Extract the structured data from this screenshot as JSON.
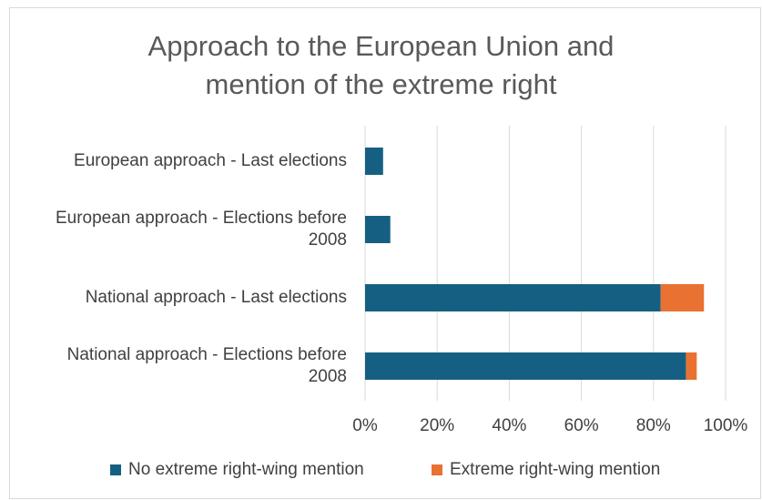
{
  "chart_data": {
    "type": "bar",
    "orientation": "horizontal",
    "stacked": true,
    "title": "Approach to the European Union and mention of the extreme right",
    "title_lines": [
      "Approach to the European Union and",
      "mention of the extreme right"
    ],
    "categories": [
      "European approach - Last elections",
      "European approach - Elections before 2008",
      "National approach - Last elections",
      "National approach - Elections before 2008"
    ],
    "category_lines": [
      [
        "European approach - Last elections"
      ],
      [
        "European approach - Elections before",
        "2008"
      ],
      [
        "National approach - Last elections"
      ],
      [
        "National approach - Elections before",
        "2008"
      ]
    ],
    "series": [
      {
        "name": "No extreme right-wing mention",
        "color": "#156082",
        "values": [
          0.05,
          0.07,
          0.82,
          0.89
        ]
      },
      {
        "name": "Extreme right-wing mention",
        "color": "#e97132",
        "values": [
          0.0,
          0.0,
          0.12,
          0.03
        ]
      }
    ],
    "xlim": [
      0,
      1
    ],
    "xticks": [
      "0%",
      "20%",
      "40%",
      "60%",
      "80%",
      "100%"
    ],
    "grid": true,
    "legend_position": "bottom"
  }
}
